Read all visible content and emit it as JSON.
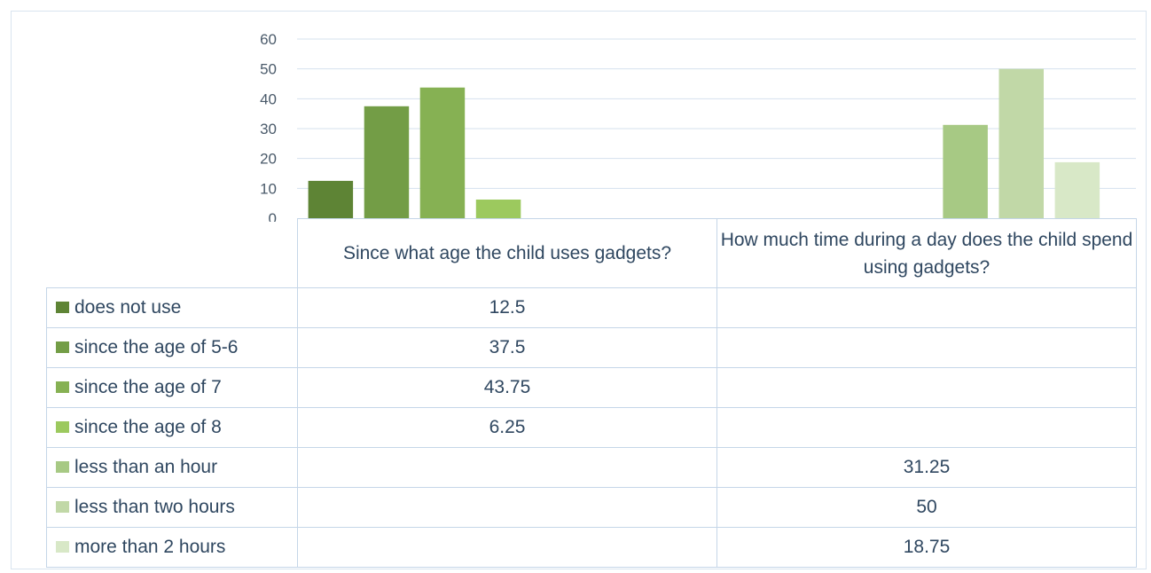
{
  "chart_data": {
    "type": "bar",
    "categories": [
      "Since what age the child uses gadgets?",
      "How much time during a day does the child spend using gadgets?"
    ],
    "series": [
      {
        "name": "does not use",
        "values": [
          12.5,
          null
        ],
        "color": "#5e8435"
      },
      {
        "name": "since the age of 5-6",
        "values": [
          37.5,
          null
        ],
        "color": "#739d46"
      },
      {
        "name": "since the age of  7",
        "values": [
          43.75,
          null
        ],
        "color": "#86b153"
      },
      {
        "name": "since the age of  8",
        "values": [
          6.25,
          null
        ],
        "color": "#9cc95e"
      },
      {
        "name": "less than an hour",
        "values": [
          null,
          31.25
        ],
        "color": "#a7c984"
      },
      {
        "name": "less than two hours",
        "values": [
          null,
          50
        ],
        "color": "#c1d8a7"
      },
      {
        "name": "more than 2 hours",
        "values": [
          null,
          18.75
        ],
        "color": "#d8e8c7"
      }
    ],
    "yticks": [
      0,
      10,
      20,
      30,
      40,
      50,
      60
    ],
    "ylim": [
      0,
      60
    ],
    "grid": true,
    "legend": "data table below chart"
  }
}
